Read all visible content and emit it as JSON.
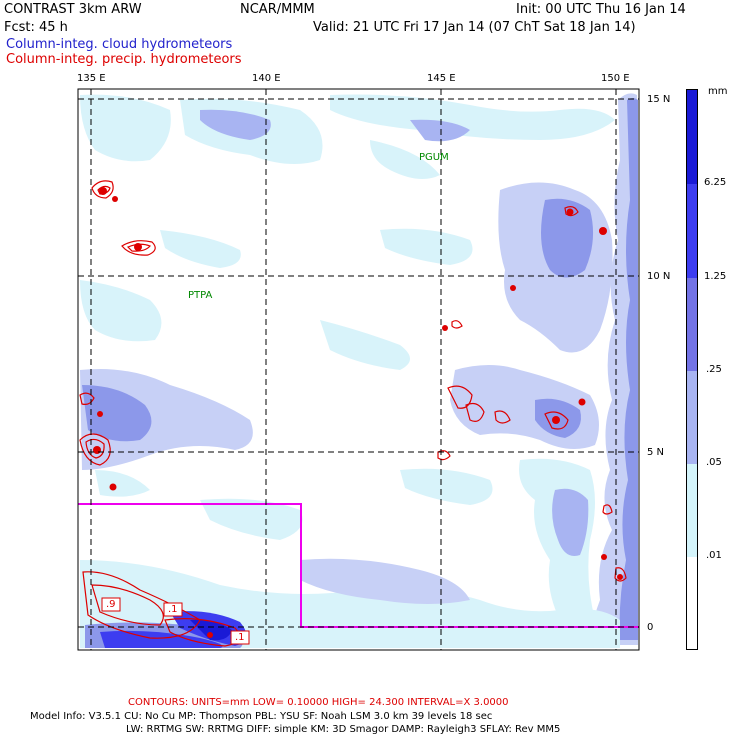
{
  "header": {
    "model_title": "CONTRAST  3km ARW",
    "org": "NCAR/MMM",
    "init": "Init: 00 UTC Thu 16 Jan 14",
    "forecast_hours": "Fcst:   45 h",
    "valid": "Valid: 21 UTC Fri 17 Jan 14 (07 ChT Sat 18 Jan 14)"
  },
  "fields": {
    "cloud": "Column-integ. cloud hydrometeors",
    "precip": "Column-integ. precip. hydrometeors"
  },
  "map": {
    "lon_labels": [
      "135 E",
      "140 E",
      "145 E",
      "150 E"
    ],
    "lat_labels": [
      "15 N",
      "10 N",
      "5 N",
      "0"
    ],
    "stations": [
      "PGUM",
      "PTPA"
    ],
    "contour_labels": [
      ".9",
      ".1",
      ".1"
    ]
  },
  "colorbar": {
    "unit": "mm",
    "levels": [
      "6.25",
      "1.25",
      ".25",
      ".05",
      ".01"
    ],
    "colors": [
      "#1a1ad6",
      "#3d3df0",
      "#7373e6",
      "#a8b4f2",
      "#d4f4fb",
      "#ffffff"
    ]
  },
  "footer": {
    "contours": "CONTOURS:  UNITS=mm  LOW= 0.10000       HIGH=  24.300       INTERVAL=X  3.0000",
    "model_info_1": "Model Info: V3.5.1     CU: No Cu     MP: Thompson     PBL: YSU        SF: Noah LSM     3.0 km   39 levels    18 sec",
    "model_info_2": "LW: RRTMG    SW: RRTMG   DIFF: simple KM: 3D Smagor DAMP: Rayleigh3   SFLAY: Rev MM5"
  }
}
